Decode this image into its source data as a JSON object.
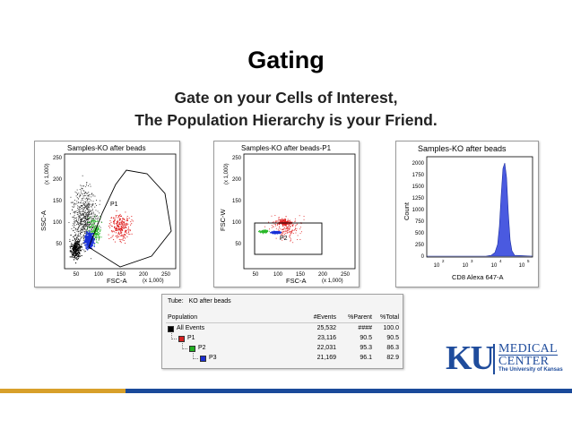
{
  "slide": {
    "title": "Gating",
    "subtitle_line1": "Gate on your Cells of Interest,",
    "subtitle_line2": "The Population Hierarchy is your Friend."
  },
  "plot1": {
    "title": "Samples-KO after beads",
    "ylabel": "SSC-A",
    "yscale": "(x 1,000)",
    "xlabel": "FSC-A",
    "xscale": "(x 1,000)",
    "xticks": [
      "50",
      "100",
      "150",
      "200",
      "250"
    ],
    "yticks": [
      "50",
      "100",
      "150",
      "200",
      "250"
    ],
    "gate_label": "P1"
  },
  "plot2": {
    "title": "Samples-KO after beads-P1",
    "ylabel": "FSC-W",
    "yscale": "(x 1,000)",
    "xlabel": "FSC-A",
    "xscale": "(x 1,000)",
    "xticks": [
      "50",
      "100",
      "150",
      "200",
      "250"
    ],
    "yticks": [
      "50",
      "100",
      "150",
      "200",
      "250"
    ],
    "gate_label": "P2"
  },
  "plot3": {
    "title": "Samples-KO after beads",
    "ylabel": "Count",
    "xlabel": "CD8 Alexa 647-A",
    "yticks": [
      "0",
      "250",
      "500",
      "750",
      "1000",
      "1250",
      "1500",
      "1750",
      "2000"
    ],
    "xticks": [
      "10",
      "10",
      "10",
      "10"
    ],
    "xexps": [
      "2",
      "3",
      "4",
      "5"
    ]
  },
  "hierarchy": {
    "tube_label": "Tube:",
    "tube_value": "KO after beads",
    "headers": [
      "Population",
      "#Events",
      "%Parent",
      "%Total"
    ],
    "rows": [
      {
        "name": "All Events",
        "events": "25,532",
        "parent": "####",
        "total": "100.0",
        "color": "#000000"
      },
      {
        "name": "P1",
        "events": "23,116",
        "parent": "90.5",
        "total": "90.5",
        "color": "#d42020"
      },
      {
        "name": "P2",
        "events": "22,031",
        "parent": "95.3",
        "total": "86.3",
        "color": "#22b022"
      },
      {
        "name": "P3",
        "events": "21,169",
        "parent": "96.1",
        "total": "82.9",
        "color": "#1c2fd0"
      }
    ]
  },
  "logo": {
    "ku": "KU",
    "medical": "MEDICAL",
    "center": "CENTER",
    "university": "The University of Kansas"
  }
}
